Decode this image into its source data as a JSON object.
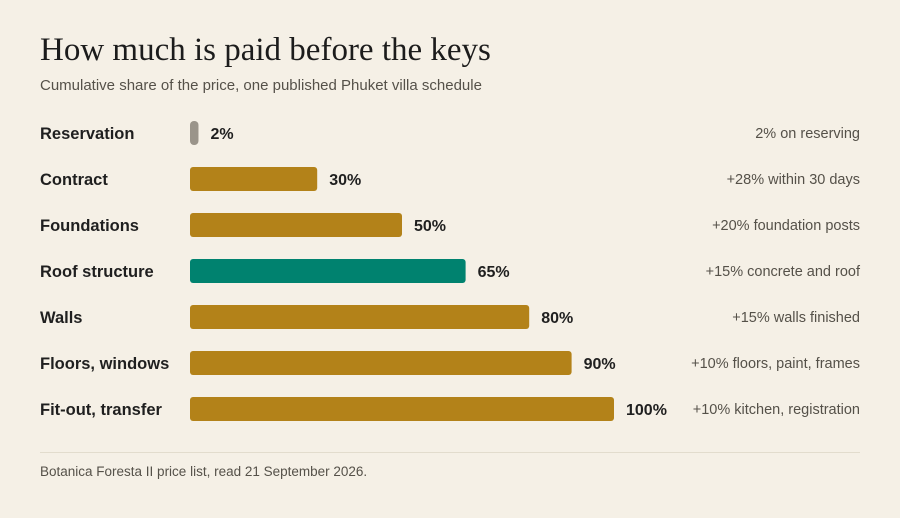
{
  "header": {
    "title": "How much is paid before the keys",
    "subtitle": "Cumulative share of the price, one published Phuket villa schedule"
  },
  "colors": {
    "background": "#f5f0e6",
    "bar_default": "#b38219",
    "bar_highlight": "#00826f",
    "bar_first": "#9a948a",
    "text_main": "#1f1f1f",
    "text_muted": "#555149"
  },
  "chart_data": {
    "type": "bar",
    "orientation": "horizontal",
    "title": "How much is paid before the keys",
    "subtitle": "Cumulative share of the price, one published Phuket villa schedule",
    "unit": "%",
    "xlim": [
      0,
      100
    ],
    "grid": false,
    "highlight_category": "Roof structure",
    "categories": [
      "Reservation",
      "Contract",
      "Foundations",
      "Roof structure",
      "Walls",
      "Floors, windows",
      "Fit-out, transfer"
    ],
    "values": [
      2,
      30,
      50,
      65,
      80,
      90,
      100
    ],
    "value_labels": [
      "2%",
      "30%",
      "50%",
      "65%",
      "80%",
      "90%",
      "100%"
    ],
    "annotations": [
      "2% on reserving",
      "+28% within 30 days",
      "+20% foundation posts",
      "+15% concrete and roof",
      "+15% walls finished",
      "+10% floors, paint, frames",
      "+10% kitchen, registration"
    ]
  },
  "footer": {
    "source": "Botanica Foresta II price list, read 21 September 2026."
  }
}
